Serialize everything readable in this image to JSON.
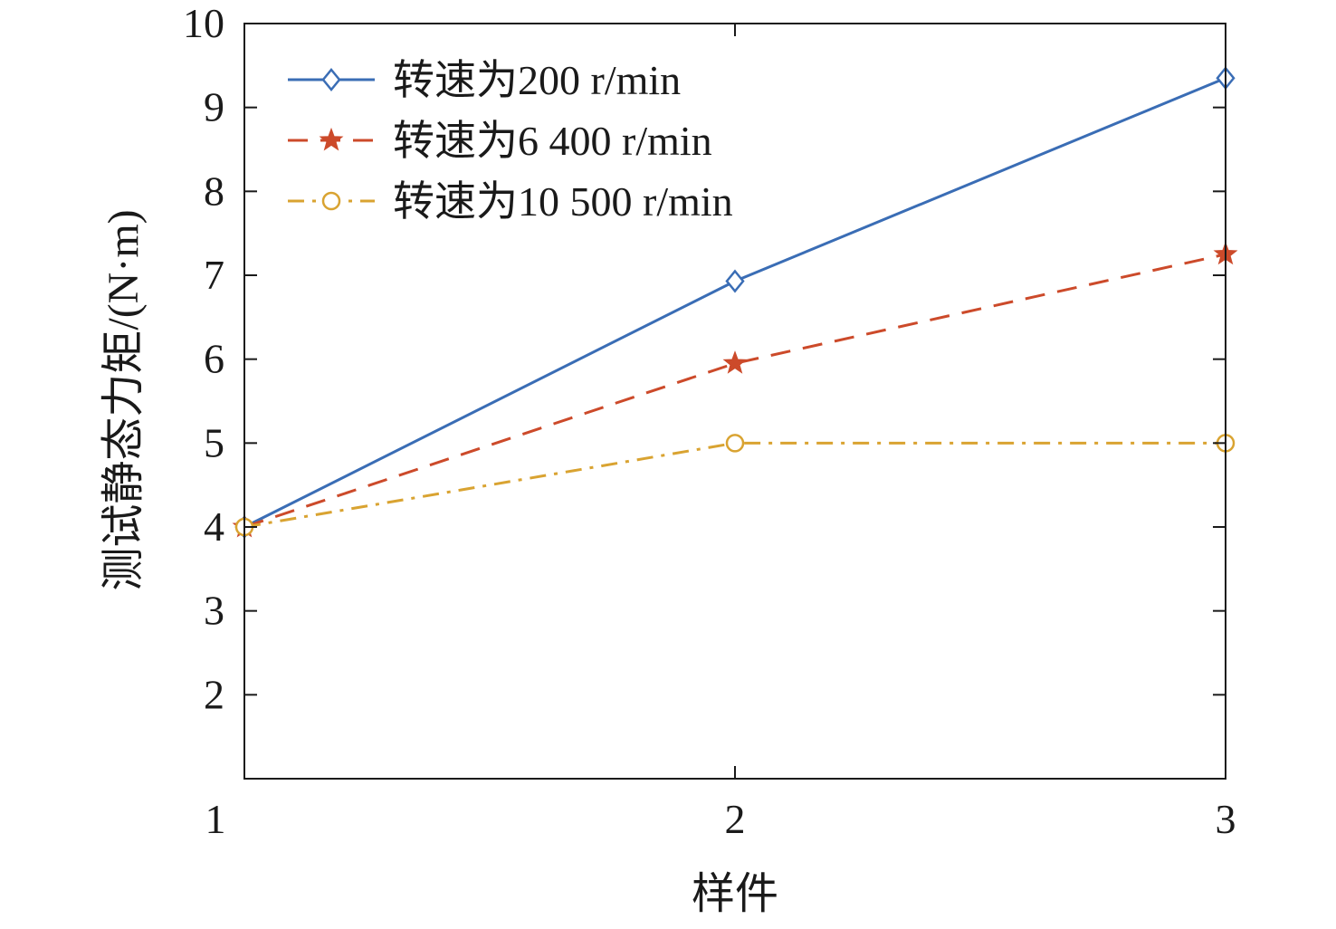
{
  "chart_data": {
    "type": "line",
    "title": "",
    "xlabel": "样件",
    "ylabel": "测试静态力矩/(N·m)",
    "x": [
      1,
      2,
      3
    ],
    "xticks": [
      "1",
      "2",
      "3"
    ],
    "xlim": [
      1,
      3
    ],
    "ylim": [
      1,
      10
    ],
    "yticks": [
      "2",
      "3",
      "4",
      "5",
      "6",
      "7",
      "8",
      "9",
      "10"
    ],
    "grid": false,
    "legend_position": "top-left",
    "series": [
      {
        "name": "转速为200 r/min",
        "values": [
          4.0,
          6.93,
          9.35
        ],
        "color": "#3a6db5",
        "marker": "diamond",
        "line_style": "solid"
      },
      {
        "name": "转速为6 400 r/min",
        "values": [
          4.0,
          5.95,
          7.25
        ],
        "color": "#cc4a2a",
        "marker": "star",
        "line_style": "dashed"
      },
      {
        "name": "转速为10 500 r/min",
        "values": [
          4.0,
          5.0,
          5.0
        ],
        "color": "#d9a331",
        "marker": "circle",
        "line_style": "dashdot"
      }
    ]
  }
}
